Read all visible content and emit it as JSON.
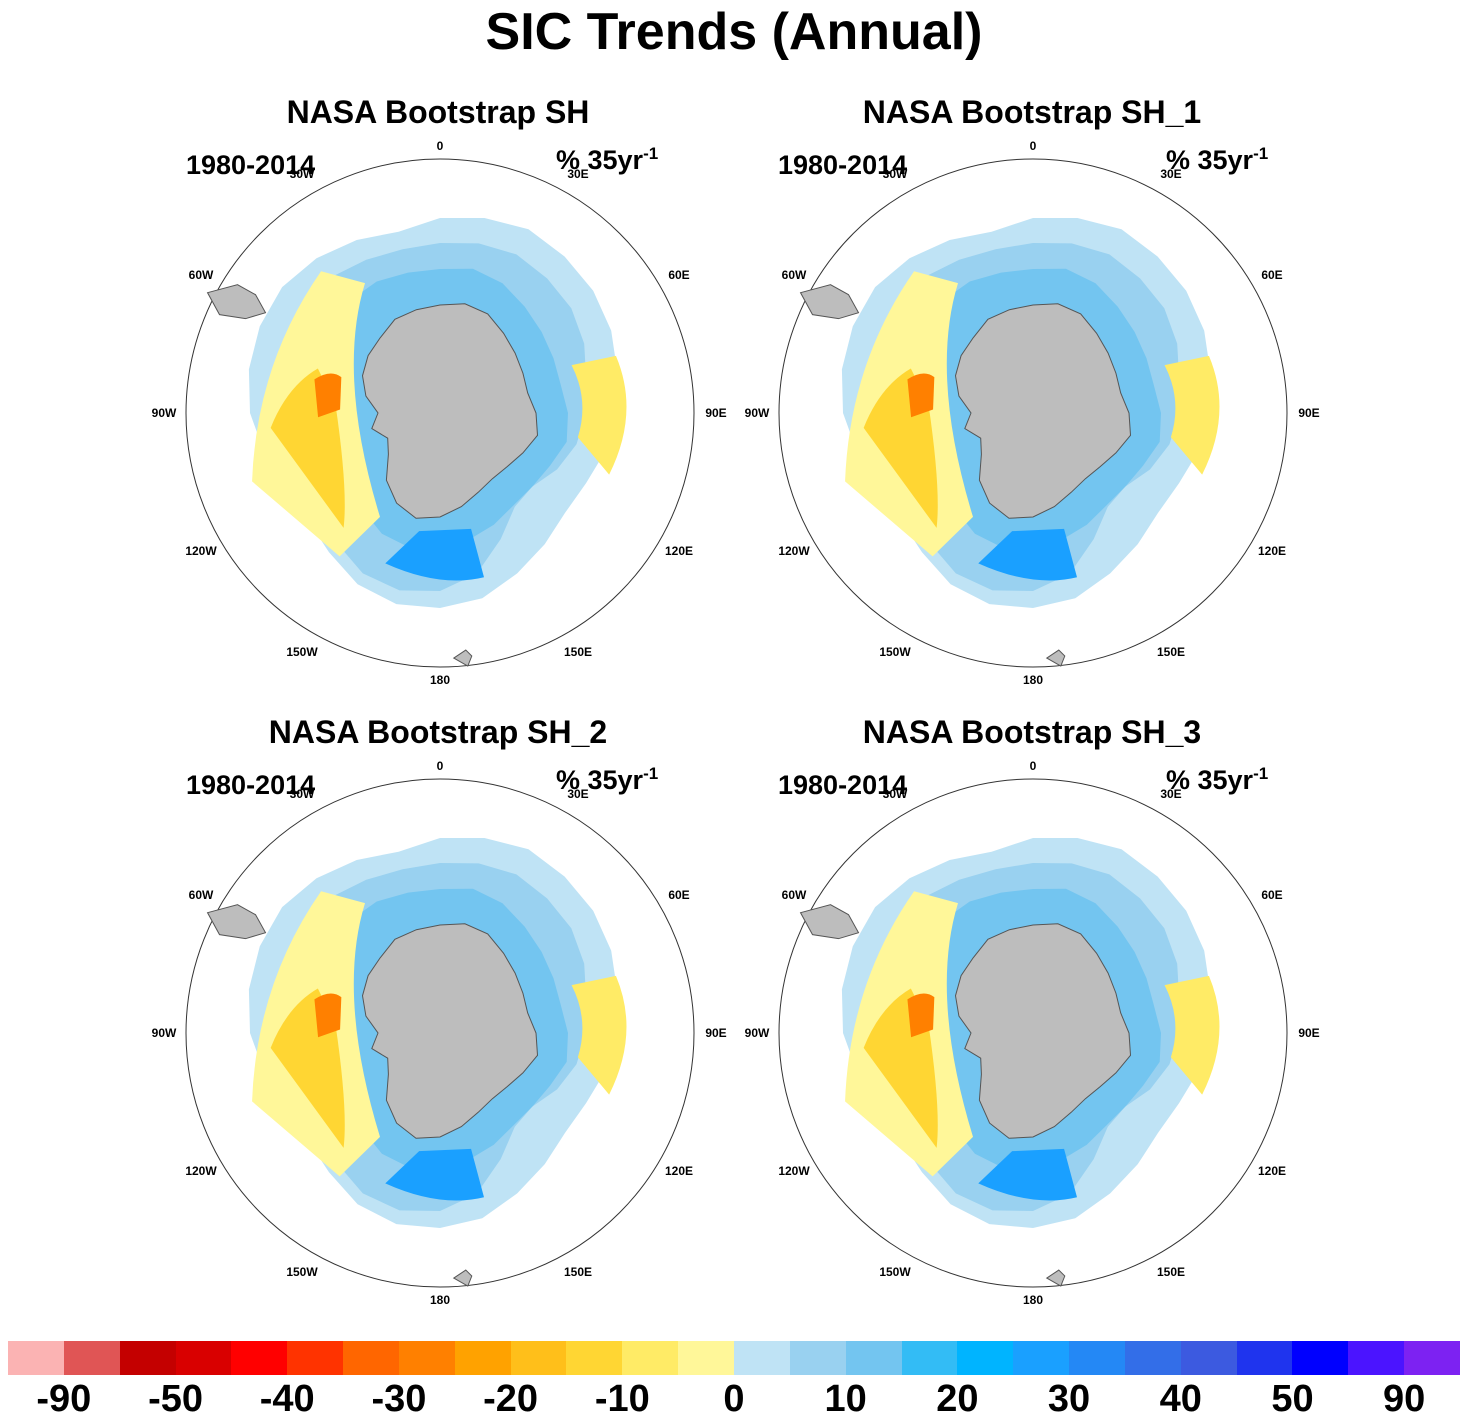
{
  "title": "SIC Trends (Annual)",
  "panels": [
    {
      "title": "NASA Bootstrap SH",
      "period": "1980-2014",
      "units": "% 35yr",
      "units_exp": "-1"
    },
    {
      "title": "NASA Bootstrap SH_1",
      "period": "1980-2014",
      "units": "% 35yr",
      "units_exp": "-1"
    },
    {
      "title": "NASA Bootstrap SH_2",
      "period": "1980-2014",
      "units": "% 35yr",
      "units_exp": "-1"
    },
    {
      "title": "NASA Bootstrap SH_3",
      "period": "1980-2014",
      "units": "% 35yr",
      "units_exp": "-1"
    }
  ],
  "longitude_labels": {
    "lon0": "0",
    "lon30e": "30E",
    "lon60e": "60E",
    "lon90e": "90E",
    "lon120e": "120E",
    "lon150e": "150E",
    "lon180": "180",
    "lon150w": "150W",
    "lon120w": "120W",
    "lon90w": "90W",
    "lon60w": "60W",
    "lon30w": "30W"
  },
  "colorbar": {
    "colors": [
      "#fbb3b3",
      "#e05555",
      "#c40000",
      "#d90000",
      "#ff0000",
      "#ff3300",
      "#ff6600",
      "#ff8000",
      "#ffa200",
      "#ffbf1a",
      "#ffd633",
      "#ffeb66",
      "#fff799",
      "#bfe3f5",
      "#99d1f0",
      "#73c5f0",
      "#33bcf5",
      "#00b4ff",
      "#1aa0ff",
      "#2488f5",
      "#336ee8",
      "#3c5ae0",
      "#1f34ee",
      "#0000ff",
      "#4b14ff",
      "#7d22f2"
    ],
    "labels": [
      "-90",
      "-50",
      "-40",
      "-30",
      "-20",
      "-10",
      "0",
      "10",
      "20",
      "30",
      "40",
      "50",
      "90"
    ]
  }
}
